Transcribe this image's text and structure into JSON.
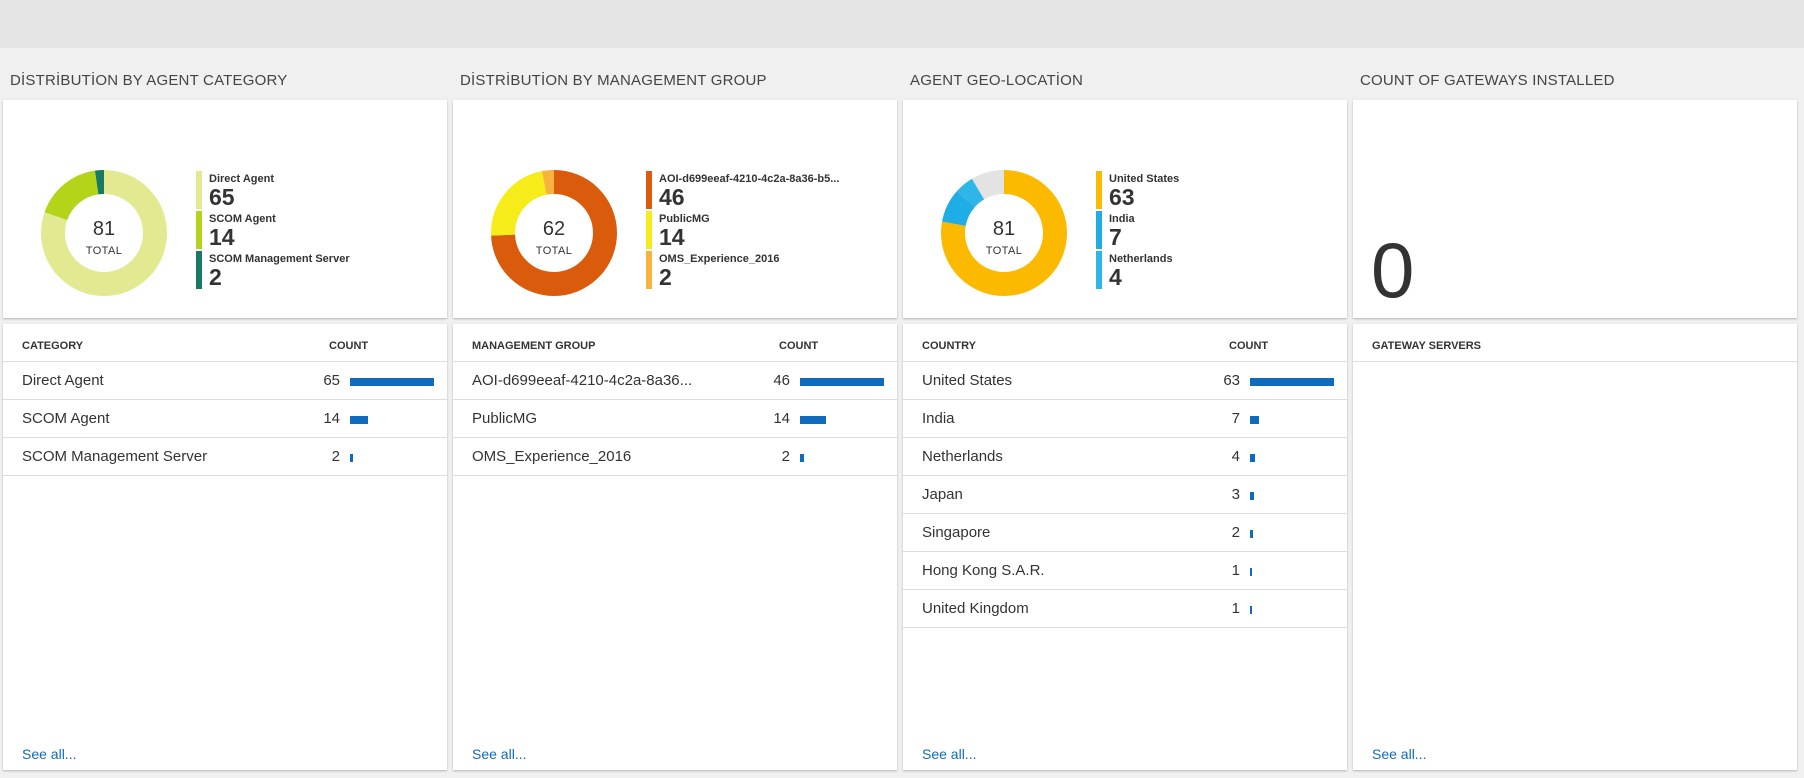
{
  "colors": {
    "accent": "#0f6cbd"
  },
  "panels": [
    {
      "title": "DİSTRİBUTİON BY AGENT CATEGORY",
      "total": "81",
      "total_label": "TOTAL",
      "legend": [
        {
          "name": "Direct Agent",
          "value": "65",
          "color": "#e3e991"
        },
        {
          "name": "SCOM Agent",
          "value": "14",
          "color": "#b4d41a"
        },
        {
          "name": "SCOM Management Server",
          "value": "2",
          "color": "#197a64"
        }
      ],
      "col1": "CATEGORY",
      "col2": "COUNT",
      "rows": [
        {
          "name": "Direct Agent",
          "count": "65"
        },
        {
          "name": "SCOM Agent",
          "count": "14"
        },
        {
          "name": "SCOM Management Server",
          "count": "2"
        }
      ],
      "see_all": "See all..."
    },
    {
      "title": "DİSTRİBUTİON BY MANAGEMENT GROUP",
      "total": "62",
      "total_label": "TOTAL",
      "legend": [
        {
          "name": "AOI-d699eeaf-4210-4c2a-8a36-b5...",
          "value": "46",
          "color": "#da5b0b"
        },
        {
          "name": "PublicMG",
          "value": "14",
          "color": "#f6ec1a"
        },
        {
          "name": "OMS_Experience_2016",
          "value": "2",
          "color": "#f7b33b"
        }
      ],
      "col1": "MANAGEMENT GROUP",
      "col2": "COUNT",
      "rows": [
        {
          "name": "AOI-d699eeaf-4210-4c2a-8a36...",
          "count": "46"
        },
        {
          "name": "PublicMG",
          "count": "14"
        },
        {
          "name": "OMS_Experience_2016",
          "count": "2"
        }
      ],
      "see_all": "See all..."
    },
    {
      "title": "AGENT GEO-LOCATİON",
      "total": "81",
      "total_label": "TOTAL",
      "legend": [
        {
          "name": "United States",
          "value": "63",
          "color": "#fbb900"
        },
        {
          "name": "India",
          "value": "7",
          "color": "#1fade6"
        },
        {
          "name": "Netherlands",
          "value": "4",
          "color": "#2fb6e8"
        }
      ],
      "donut_other": "#e3e3e3",
      "col1": "COUNTRY",
      "col2": "COUNT",
      "rows": [
        {
          "name": "United States",
          "count": "63"
        },
        {
          "name": "India",
          "count": "7"
        },
        {
          "name": "Netherlands",
          "count": "4"
        },
        {
          "name": "Japan",
          "count": "3"
        },
        {
          "name": "Singapore",
          "count": "2"
        },
        {
          "name": "Hong Kong S.A.R.",
          "count": "1"
        },
        {
          "name": "United Kingdom",
          "count": "1"
        }
      ],
      "see_all": "See all..."
    },
    {
      "title": "COUNT OF GATEWAYS INSTALLED",
      "big_count": "0",
      "col1": "GATEWAY SERVERS",
      "rows": [],
      "see_all": "See all..."
    }
  ]
}
